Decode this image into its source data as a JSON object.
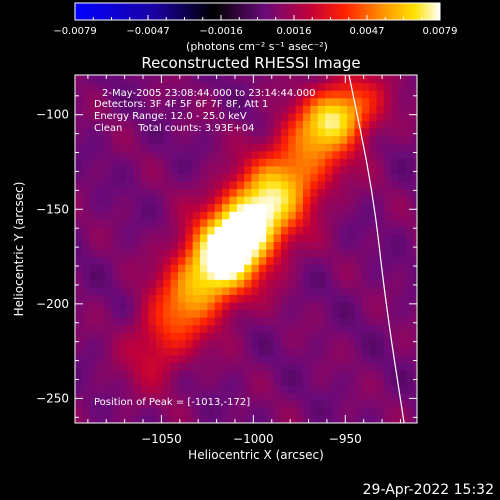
{
  "colors": {
    "background": "#000000",
    "foreground": "#ffffff",
    "colormap": "IDL color table 3 (blue-black-purple-red-orange-yellow-white)"
  },
  "chart_data": {
    "type": "heatmap",
    "title": "Reconstructed RHESSI Image",
    "xlabel": "Heliocentric X (arcsec)",
    "ylabel": "Heliocentric Y (arcsec)",
    "xlim": [
      -1097,
      -911
    ],
    "ylim": [
      -263,
      -79
    ],
    "xticks": [
      -1050,
      -1000,
      -950
    ],
    "yticks": [
      -100,
      -150,
      -200,
      -250
    ],
    "colorbar": {
      "label": "(photons cm⁻² s⁻¹ asec⁻²)",
      "min": -0.0079,
      "max": 0.0079,
      "ticks": [
        "-0.0079",
        "-0.0047",
        "-0.0016",
        "0.0016",
        "0.0047",
        "0.0079"
      ]
    },
    "annotations": {
      "time": "2-May-2005 23:08:44.000 to 23:14:44.000",
      "detectors": "Detectors: 3F 4F 5F 6F 7F 8F, Att 1",
      "energy": "Energy Range: 12.0 - 25.0 keV",
      "clean": "Clean     Total counts: 3.93E+04",
      "peak": "Position of Peak = [-1013,-172]"
    },
    "sources": [
      {
        "x": -1013,
        "y": -172,
        "peak": 0.0079,
        "sigma_major": 24,
        "sigma_minor": 14,
        "angle_deg": 50
      },
      {
        "x": -985,
        "y": -138,
        "peak": 0.0046,
        "sigma_major": 30,
        "sigma_minor": 14,
        "angle_deg": 45
      },
      {
        "x": -955,
        "y": -100,
        "peak": 0.0055,
        "sigma_major": 16,
        "sigma_minor": 11,
        "angle_deg": 30
      },
      {
        "x": -1045,
        "y": -212,
        "peak": 0.0028,
        "sigma_major": 22,
        "sigma_minor": 12,
        "angle_deg": 60
      }
    ],
    "limb": {
      "points": [
        [
          -948,
          -79
        ],
        [
          -935,
          -140
        ],
        [
          -928,
          -200
        ],
        [
          -918,
          -263
        ]
      ]
    }
  },
  "timestamp": "29-Apr-2022 15:32"
}
